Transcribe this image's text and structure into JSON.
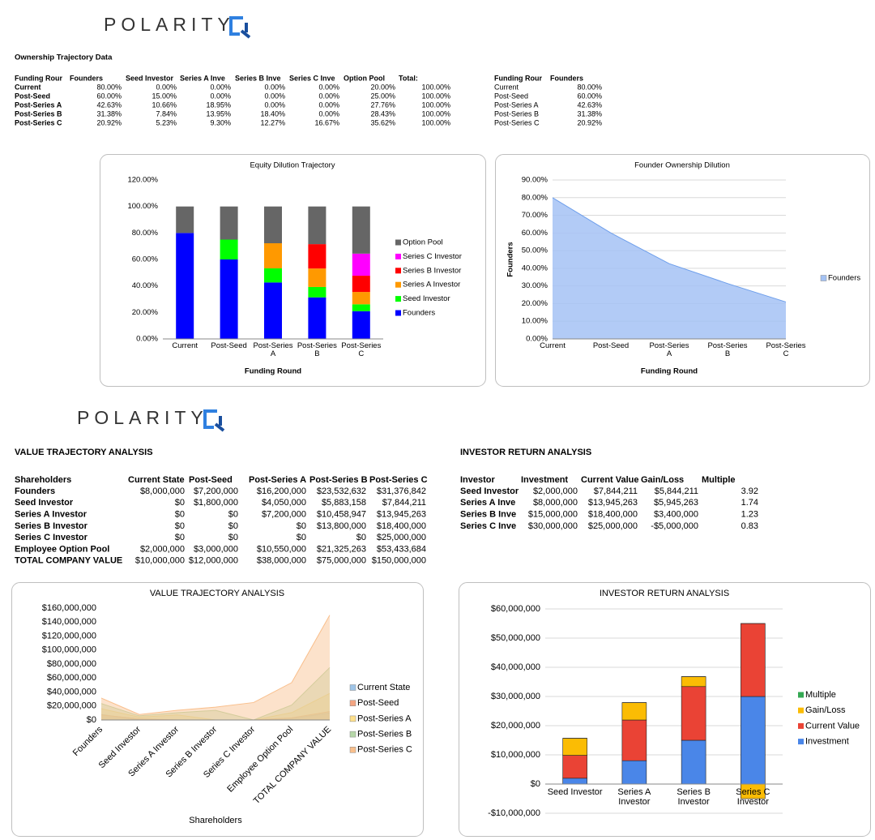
{
  "logos": [
    "POLARITY",
    "POLARITY"
  ],
  "ownership": {
    "title": "Ownership Trajectory Data",
    "table": {
      "header": [
        "Funding Rour",
        "Founders",
        "Seed Investor",
        "Series A Inve",
        "Series B Inve",
        "Series C Inve",
        "Option Pool",
        "Total:"
      ],
      "rows": [
        [
          "Current",
          "80.00%",
          "0.00%",
          "0.00%",
          "0.00%",
          "0.00%",
          "20.00%",
          "100.00%"
        ],
        [
          "Post-Seed",
          "60.00%",
          "15.00%",
          "0.00%",
          "0.00%",
          "0.00%",
          "25.00%",
          "100.00%"
        ],
        [
          "Post-Series A",
          "42.63%",
          "10.66%",
          "18.95%",
          "0.00%",
          "0.00%",
          "27.76%",
          "100.00%"
        ],
        [
          "Post-Series B",
          "31.38%",
          "7.84%",
          "13.95%",
          "18.40%",
          "0.00%",
          "28.43%",
          "100.00%"
        ],
        [
          "Post-Series C",
          "20.92%",
          "5.23%",
          "9.30%",
          "12.27%",
          "16.67%",
          "35.62%",
          "100.00%"
        ]
      ]
    }
  },
  "founders_table": {
    "header": [
      "Funding Rour",
      "Founders"
    ],
    "rows": [
      [
        "Current",
        "80.00%"
      ],
      [
        "Post-Seed",
        "60.00%"
      ],
      [
        "Post-Series A",
        "42.63%"
      ],
      [
        "Post-Series B",
        "31.38%"
      ],
      [
        "Post-Series C",
        "20.92%"
      ]
    ]
  },
  "value_table": {
    "title": "VALUE TRAJECTORY ANALYSIS",
    "header": [
      "Shareholders",
      "Current State",
      "Post-Seed",
      "Post-Series A",
      "Post-Series B",
      "Post-Series C"
    ],
    "rows": [
      [
        "Founders",
        "$8,000,000",
        "$7,200,000",
        "$16,200,000",
        "$23,532,632",
        "$31,376,842"
      ],
      [
        "Seed Investor",
        "$0",
        "$1,800,000",
        "$4,050,000",
        "$5,883,158",
        "$7,844,211"
      ],
      [
        "Series A Investor",
        "$0",
        "$0",
        "$7,200,000",
        "$10,458,947",
        "$13,945,263"
      ],
      [
        "Series B Investor",
        "$0",
        "$0",
        "$0",
        "$13,800,000",
        "$18,400,000"
      ],
      [
        "Series C Investor",
        "$0",
        "$0",
        "$0",
        "$0",
        "$25,000,000"
      ],
      [
        "Employee Option Pool",
        "$2,000,000",
        "$3,000,000",
        "$10,550,000",
        "$21,325,263",
        "$53,433,684"
      ],
      [
        "TOTAL COMPANY VALUE",
        "$10,000,000",
        "$12,000,000",
        "$38,000,000",
        "$75,000,000",
        "$150,000,000"
      ]
    ]
  },
  "return_table": {
    "title": "INVESTOR RETURN ANALYSIS",
    "header": [
      "Investor",
      "Investment",
      "Current Value",
      "Gain/Loss",
      "Multiple"
    ],
    "rows": [
      [
        "Seed Investor",
        "$2,000,000",
        "$7,844,211",
        "$5,844,211",
        "3.92"
      ],
      [
        "Series A Inve",
        "$8,000,000",
        "$13,945,263",
        "$5,945,263",
        "1.74"
      ],
      [
        "Series B Inve",
        "$15,000,000",
        "$18,400,000",
        "$3,400,000",
        "1.23"
      ],
      [
        "Series C Inve",
        "$30,000,000",
        "$25,000,000",
        "-$5,000,000",
        "0.83"
      ]
    ]
  },
  "chart_data": [
    {
      "type": "bar",
      "stacked": true,
      "title": "Equity Dilution Trajectory",
      "x_label": "Funding Round",
      "categories": [
        "Current",
        "Post-Seed",
        "Post-Series A",
        "Post-Series B",
        "Post-Series C"
      ],
      "series": [
        {
          "name": "Founders",
          "color": "#0000ff",
          "values": [
            80,
            60,
            42.63,
            31.38,
            20.92
          ]
        },
        {
          "name": "Seed Investor",
          "color": "#00ff00",
          "values": [
            0,
            15,
            10.66,
            7.84,
            5.23
          ]
        },
        {
          "name": "Series A Investor",
          "color": "#ff9900",
          "values": [
            0,
            0,
            18.95,
            13.95,
            9.3
          ]
        },
        {
          "name": "Series B Investor",
          "color": "#ff0000",
          "values": [
            0,
            0,
            0,
            18.4,
            12.27
          ]
        },
        {
          "name": "Series C Investor",
          "color": "#ff00ff",
          "values": [
            0,
            0,
            0,
            0,
            16.67
          ]
        },
        {
          "name": "Option Pool",
          "color": "#666666",
          "values": [
            20,
            25,
            27.76,
            28.43,
            35.62
          ]
        }
      ],
      "ylim": [
        0,
        120
      ],
      "yticks": [
        {
          "value": 0,
          "label": "0.00%"
        },
        {
          "value": 20,
          "label": "20.00%"
        },
        {
          "value": 40,
          "label": "40.00%"
        },
        {
          "value": 60,
          "label": "60.00%"
        },
        {
          "value": 80,
          "label": "80.00%"
        },
        {
          "value": 100,
          "label": "100.00%"
        },
        {
          "value": 120,
          "label": "120.00%"
        }
      ],
      "grid": false,
      "legend": "right"
    },
    {
      "type": "area",
      "title": "Founder Ownership Dilution",
      "x_label": "Funding Round",
      "y_label": "Founders",
      "categories": [
        "Current",
        "Post-Seed",
        "Post-Series A",
        "Post-Series B",
        "Post-Series C"
      ],
      "series": [
        {
          "name": "Founders",
          "color": "#a4c2f4",
          "values": [
            80,
            60,
            42.63,
            31.38,
            20.92
          ]
        }
      ],
      "ylim": [
        0,
        90
      ],
      "yticks": [
        {
          "value": 0,
          "label": "0.00%"
        },
        {
          "value": 10,
          "label": "10.00%"
        },
        {
          "value": 20,
          "label": "20.00%"
        },
        {
          "value": 30,
          "label": "30.00%"
        },
        {
          "value": 40,
          "label": "40.00%"
        },
        {
          "value": 50,
          "label": "50.00%"
        },
        {
          "value": 60,
          "label": "60.00%"
        },
        {
          "value": 70,
          "label": "70.00%"
        },
        {
          "value": 80,
          "label": "80.00%"
        },
        {
          "value": 90,
          "label": "90.00%"
        }
      ],
      "grid": true,
      "legend": "right"
    },
    {
      "type": "area",
      "title": "VALUE TRAJECTORY ANALYSIS",
      "x_label": "Shareholders",
      "categories": [
        "Founders",
        "Seed Investor",
        "Series A Investor",
        "Series B Investor",
        "Series C Investor",
        "Employee Option Pool",
        "TOTAL COMPANY VALUE"
      ],
      "series": [
        {
          "name": "Current State",
          "color": "#9fc5e8",
          "values": [
            8000000,
            0,
            0,
            0,
            0,
            2000000,
            10000000
          ]
        },
        {
          "name": "Post-Seed",
          "color": "#f4a582",
          "values": [
            7200000,
            1800000,
            0,
            0,
            0,
            3000000,
            12000000
          ]
        },
        {
          "name": "Post-Series A",
          "color": "#ffe08a",
          "values": [
            16200000,
            4050000,
            7200000,
            0,
            0,
            10550000,
            38000000
          ]
        },
        {
          "name": "Post-Series B",
          "color": "#b6d7a8",
          "values": [
            23532632,
            5883158,
            10458947,
            13800000,
            0,
            21325263,
            75000000
          ]
        },
        {
          "name": "Post-Series C",
          "color": "#f9bf8c",
          "values": [
            31376842,
            7844211,
            13945263,
            18400000,
            25000000,
            53433684,
            150000000
          ]
        }
      ],
      "ylim": [
        0,
        160000000
      ],
      "yticks": [
        {
          "value": 0,
          "label": "$0"
        },
        {
          "value": 20000000,
          "label": "$20,000,000"
        },
        {
          "value": 40000000,
          "label": "$40,000,000"
        },
        {
          "value": 60000000,
          "label": "$60,000,000"
        },
        {
          "value": 80000000,
          "label": "$80,000,000"
        },
        {
          "value": 100000000,
          "label": "$100,000,000"
        },
        {
          "value": 120000000,
          "label": "$120,000,000"
        },
        {
          "value": 140000000,
          "label": "$140,000,000"
        },
        {
          "value": 160000000,
          "label": "$160,000,000"
        }
      ],
      "grid": false,
      "legend": "right"
    },
    {
      "type": "bar",
      "stacked": true,
      "title": "INVESTOR RETURN ANALYSIS",
      "categories": [
        "Seed Investor",
        "Series A Investor",
        "Series B Investor",
        "Series C Investor"
      ],
      "series": [
        {
          "name": "Investment",
          "color": "#4a86e8",
          "values": [
            2000000,
            8000000,
            15000000,
            30000000
          ]
        },
        {
          "name": "Current Value",
          "color": "#ea4335",
          "values": [
            7844211,
            13945263,
            18400000,
            25000000
          ]
        },
        {
          "name": "Gain/Loss",
          "color": "#fbbc04",
          "values": [
            5844211,
            5945263,
            3400000,
            -5000000
          ]
        },
        {
          "name": "Multiple",
          "color": "#34a853",
          "values": [
            3.92,
            1.74,
            1.23,
            0.83
          ]
        }
      ],
      "ylim": [
        -10000000,
        60000000
      ],
      "yticks": [
        {
          "value": -10000000,
          "label": "-$10,000,000"
        },
        {
          "value": 0,
          "label": "$0"
        },
        {
          "value": 10000000,
          "label": "$10,000,000"
        },
        {
          "value": 20000000,
          "label": "$20,000,000"
        },
        {
          "value": 30000000,
          "label": "$30,000,000"
        },
        {
          "value": 40000000,
          "label": "$40,000,000"
        },
        {
          "value": 50000000,
          "label": "$50,000,000"
        },
        {
          "value": 60000000,
          "label": "$60,000,000"
        }
      ],
      "grid": true,
      "legend": "right"
    }
  ]
}
